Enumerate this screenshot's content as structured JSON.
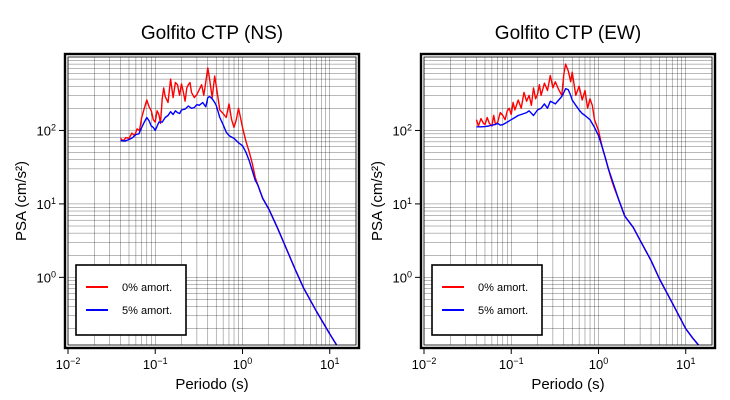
{
  "chart_data": [
    {
      "type": "line",
      "title": "Golfito CTP (NS)",
      "xlabel": "Periodo (s)",
      "ylabel": "PSA (cm/s²)",
      "xscale": "log",
      "yscale": "log",
      "xlim": [
        0.01,
        20
      ],
      "ylim": [
        0.12,
        1000
      ],
      "grid": true,
      "legend_position": "bottom-left",
      "xticks": [
        {
          "mant": "10",
          "exp": "−2"
        },
        {
          "mant": "10",
          "exp": "−1"
        },
        {
          "mant": "10",
          "exp": "0"
        },
        {
          "mant": "10",
          "exp": "1"
        }
      ],
      "xtick_values": [
        0.01,
        0.1,
        1,
        10
      ],
      "yticks": [
        {
          "mant": "10",
          "exp": "0"
        },
        {
          "mant": "10",
          "exp": "1"
        },
        {
          "mant": "10",
          "exp": "2"
        }
      ],
      "ytick_values": [
        1,
        10,
        100
      ],
      "series": [
        {
          "name": "0% amort.",
          "color": "#ff0000",
          "x": [
            0.04,
            0.043,
            0.046,
            0.05,
            0.054,
            0.058,
            0.062,
            0.066,
            0.07,
            0.075,
            0.08,
            0.085,
            0.09,
            0.095,
            0.1,
            0.105,
            0.11,
            0.115,
            0.12,
            0.125,
            0.13,
            0.14,
            0.15,
            0.16,
            0.17,
            0.18,
            0.19,
            0.2,
            0.21,
            0.22,
            0.23,
            0.24,
            0.25,
            0.26,
            0.28,
            0.3,
            0.32,
            0.34,
            0.36,
            0.38,
            0.4,
            0.42,
            0.45,
            0.48,
            0.5,
            0.55,
            0.6,
            0.65,
            0.7,
            0.75,
            0.8,
            0.85,
            0.9,
            0.95,
            1.0,
            1.1,
            1.2,
            1.3,
            1.4,
            1.5,
            1.7,
            2.0,
            2.5,
            3.0,
            4.0,
            5.0,
            7.0,
            10.0,
            12.0
          ],
          "y": [
            78,
            72,
            80,
            78,
            92,
            85,
            105,
            100,
            150,
            200,
            260,
            210,
            185,
            140,
            130,
            185,
            165,
            125,
            270,
            380,
            290,
            240,
            500,
            280,
            450,
            420,
            300,
            430,
            330,
            250,
            380,
            420,
            450,
            330,
            280,
            310,
            360,
            420,
            300,
            460,
            710,
            500,
            280,
            550,
            410,
            190,
            170,
            150,
            230,
            140,
            110,
            140,
            200,
            150,
            110,
            70,
            50,
            35,
            23,
            18,
            12,
            8.5,
            4.8,
            2.9,
            1.3,
            0.72,
            0.35,
            0.17,
            0.12
          ]
        },
        {
          "name": "5% amort.",
          "color": "#0000ff",
          "x": [
            0.04,
            0.045,
            0.05,
            0.055,
            0.06,
            0.065,
            0.07,
            0.075,
            0.08,
            0.085,
            0.09,
            0.095,
            0.1,
            0.11,
            0.12,
            0.13,
            0.14,
            0.15,
            0.16,
            0.17,
            0.18,
            0.19,
            0.2,
            0.22,
            0.24,
            0.26,
            0.28,
            0.3,
            0.32,
            0.35,
            0.38,
            0.4,
            0.42,
            0.45,
            0.48,
            0.5,
            0.55,
            0.6,
            0.65,
            0.7,
            0.8,
            0.9,
            1.0,
            1.1,
            1.2,
            1.3,
            1.4,
            1.5,
            1.7,
            2.0,
            2.5,
            3.0,
            4.0,
            5.0,
            7.0,
            10.0,
            12.0
          ],
          "y": [
            73,
            72,
            75,
            80,
            88,
            90,
            110,
            130,
            150,
            135,
            115,
            110,
            100,
            130,
            130,
            150,
            160,
            180,
            165,
            185,
            175,
            170,
            190,
            195,
            215,
            200,
            205,
            225,
            220,
            240,
            210,
            280,
            290,
            270,
            240,
            220,
            150,
            120,
            95,
            85,
            78,
            68,
            62,
            50,
            38,
            28,
            21,
            18,
            12,
            8.5,
            4.8,
            2.9,
            1.3,
            0.72,
            0.35,
            0.17,
            0.12
          ]
        }
      ]
    },
    {
      "type": "line",
      "title": "Golfito CTP (EW)",
      "xlabel": "Periodo (s)",
      "ylabel": "PSA (cm/s²)",
      "xscale": "log",
      "yscale": "log",
      "xlim": [
        0.01,
        20
      ],
      "ylim": [
        0.12,
        1000
      ],
      "grid": true,
      "legend_position": "bottom-left",
      "xticks": [
        {
          "mant": "10",
          "exp": "−2"
        },
        {
          "mant": "10",
          "exp": "−1"
        },
        {
          "mant": "10",
          "exp": "0"
        },
        {
          "mant": "10",
          "exp": "1"
        }
      ],
      "xtick_values": [
        0.01,
        0.1,
        1,
        10
      ],
      "yticks": [
        {
          "mant": "10",
          "exp": "0"
        },
        {
          "mant": "10",
          "exp": "1"
        },
        {
          "mant": "10",
          "exp": "2"
        }
      ],
      "ytick_values": [
        1,
        10,
        100
      ],
      "series": [
        {
          "name": "0% amort.",
          "color": "#ff0000",
          "x": [
            0.04,
            0.042,
            0.045,
            0.048,
            0.05,
            0.053,
            0.056,
            0.06,
            0.063,
            0.066,
            0.07,
            0.075,
            0.08,
            0.085,
            0.09,
            0.095,
            0.1,
            0.105,
            0.11,
            0.12,
            0.13,
            0.14,
            0.15,
            0.16,
            0.17,
            0.18,
            0.19,
            0.2,
            0.21,
            0.22,
            0.24,
            0.26,
            0.28,
            0.3,
            0.32,
            0.35,
            0.38,
            0.4,
            0.42,
            0.45,
            0.48,
            0.5,
            0.55,
            0.6,
            0.65,
            0.7,
            0.75,
            0.8,
            0.85,
            0.9,
            1.0,
            1.1,
            1.2,
            1.3,
            1.4,
            1.5,
            1.7,
            2.0,
            2.5,
            3.0,
            4.0,
            5.0,
            7.0,
            10.0,
            12.0,
            14.0
          ],
          "y": [
            140,
            115,
            145,
            125,
            120,
            150,
            125,
            115,
            160,
            120,
            130,
            175,
            160,
            140,
            185,
            200,
            165,
            240,
            190,
            260,
            200,
            330,
            250,
            300,
            220,
            380,
            270,
            310,
            420,
            300,
            440,
            350,
            560,
            380,
            460,
            360,
            300,
            580,
            800,
            650,
            460,
            620,
            300,
            400,
            260,
            350,
            200,
            270,
            220,
            140,
            100,
            60,
            42,
            30,
            22,
            17,
            11.5,
            6.8,
            4.8,
            3.2,
            1.7,
            0.95,
            0.45,
            0.2,
            0.15,
            0.12
          ]
        },
        {
          "name": "5% amort.",
          "color": "#0000ff",
          "x": [
            0.04,
            0.045,
            0.05,
            0.055,
            0.06,
            0.065,
            0.07,
            0.075,
            0.08,
            0.09,
            0.1,
            0.11,
            0.12,
            0.13,
            0.14,
            0.15,
            0.16,
            0.18,
            0.2,
            0.22,
            0.24,
            0.26,
            0.28,
            0.3,
            0.32,
            0.35,
            0.38,
            0.4,
            0.42,
            0.45,
            0.48,
            0.5,
            0.55,
            0.6,
            0.65,
            0.7,
            0.8,
            0.9,
            1.0,
            1.1,
            1.2,
            1.3,
            1.5,
            1.7,
            2.0,
            2.5,
            3.0,
            4.0,
            5.0,
            7.0,
            10.0,
            12.0,
            14.0
          ],
          "y": [
            112,
            112,
            113,
            115,
            118,
            120,
            125,
            118,
            120,
            130,
            140,
            150,
            160,
            165,
            170,
            175,
            185,
            160,
            190,
            200,
            230,
            200,
            250,
            240,
            230,
            260,
            290,
            330,
            370,
            360,
            300,
            260,
            220,
            190,
            170,
            160,
            140,
            110,
            85,
            60,
            42,
            30,
            18,
            11.5,
            6.8,
            4.8,
            3.2,
            1.7,
            0.95,
            0.45,
            0.2,
            0.15,
            0.12
          ]
        }
      ]
    }
  ]
}
